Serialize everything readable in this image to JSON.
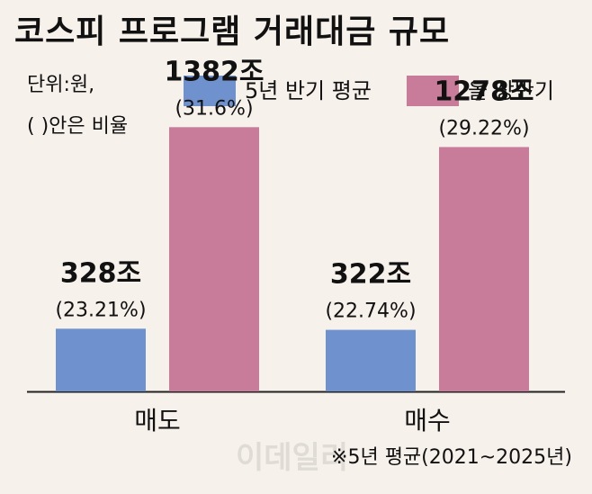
{
  "title": "코스피 프로그램 거래대금 규모",
  "unit_note": "단위:원,",
  "ratio_note": "(   )안은 비율",
  "footnote": "※5년 평균(2021~2025년)",
  "watermark": "이데일리",
  "colors": {
    "background": "#f6f1ea",
    "avg_5y": "#6f92cf",
    "this_half": "#c97b9a"
  },
  "chart_data": {
    "type": "bar",
    "categories": [
      "매도",
      "매수"
    ],
    "series": [
      {
        "name": "5년 반기 평균",
        "values": [
          328,
          322
        ],
        "labels": [
          "328조",
          "322조"
        ],
        "ratios": [
          "(23.21%)",
          "(22.74%)"
        ]
      },
      {
        "name": "올 상반기",
        "values": [
          1382,
          1278
        ],
        "labels": [
          "1382조",
          "1278조"
        ],
        "ratios": [
          "(31.6%)",
          "(29.22%)"
        ]
      }
    ],
    "ylim": [
      0,
      1600
    ],
    "grid": false,
    "legend": "top-right"
  }
}
